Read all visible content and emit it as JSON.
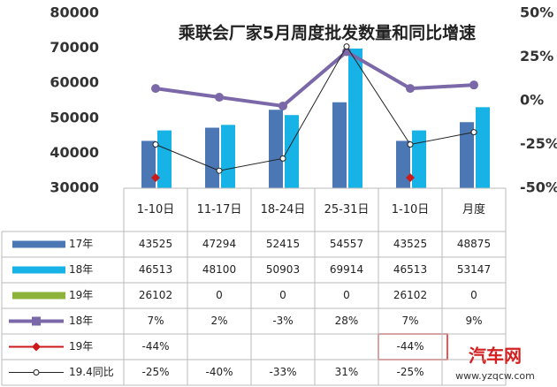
{
  "chart_data": {
    "type": "bar",
    "title": "乘联会厂家5月周度批发数量和同比增速",
    "categories": [
      "1-10日",
      "11-17日",
      "18-24日",
      "25-31日",
      "1-10日",
      "月度"
    ],
    "ylim": [
      30000,
      80000
    ],
    "yticks": [
      30000,
      40000,
      50000,
      60000,
      70000,
      80000
    ],
    "y2lim": [
      -50,
      50
    ],
    "y2ticks": [
      {
        "value": -50,
        "label": "-50%"
      },
      {
        "value": -25,
        "label": "-25%"
      },
      {
        "value": 0,
        "label": "0%"
      },
      {
        "value": 25,
        "label": "25%"
      },
      {
        "value": 50,
        "label": "50%"
      }
    ],
    "series": [
      {
        "name": "17年",
        "type": "bar",
        "color": "#4b78b4",
        "values": [
          43525,
          47294,
          52415,
          54557,
          43525,
          48875
        ]
      },
      {
        "name": "18年",
        "type": "bar",
        "color": "#17b2e6",
        "values": [
          46513,
          48100,
          50903,
          69914,
          46513,
          53147
        ]
      },
      {
        "name": "19年",
        "type": "bar",
        "color": "#8db33a",
        "values": [
          26102,
          0,
          0,
          0,
          26102,
          0
        ]
      },
      {
        "name": "18年",
        "type": "line",
        "axis": "y2",
        "color": "#7b68a8",
        "values": [
          7,
          2,
          -3,
          28,
          7,
          9
        ],
        "value_labels": [
          "7%",
          "2%",
          "-3%",
          "28%",
          "7%",
          "9%"
        ]
      },
      {
        "name": "19年",
        "type": "scatter",
        "axis": "y2",
        "color": "#cc1a1a",
        "values": [
          -44,
          null,
          null,
          null,
          -44,
          null
        ],
        "value_labels": [
          "-44%",
          null,
          null,
          null,
          "-44%",
          null
        ]
      },
      {
        "name": "19.4同比",
        "type": "line",
        "axis": "y2",
        "color": "#222222",
        "values": [
          -25,
          -40,
          -33,
          31,
          -25,
          -18
        ],
        "value_labels": [
          "-25%",
          "-40%",
          "-33%",
          "31%",
          "-25%",
          null
        ]
      }
    ]
  },
  "watermark": {
    "brand": "汽车网",
    "url": "www.yzqcw.com"
  }
}
